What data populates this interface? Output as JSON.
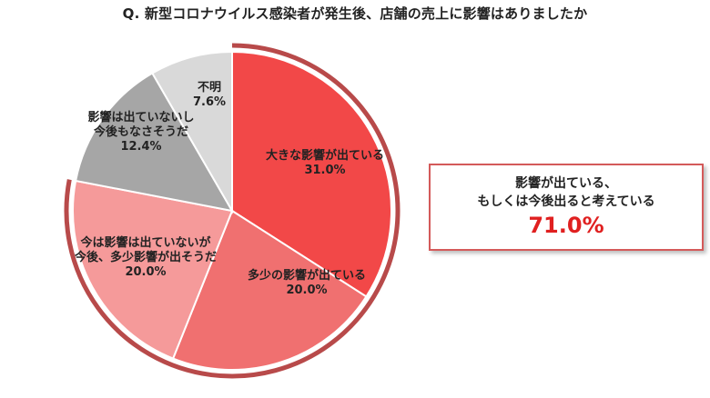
{
  "title": "Q.  新型コロナウイルス感染者が発生後、店舗の売上に影響はありましたか",
  "summary": {
    "line1": "影響が出ている、",
    "line2": "もしくは今後出ると考えている",
    "value": "71.0%"
  },
  "colors": {
    "slice1": "#f24848",
    "slice2": "#f07070",
    "slice3": "#f59a9a",
    "slice4": "#a6a6a6",
    "slice5": "#d9d9d9",
    "outer_arc": "#b84a4a",
    "summary_value": "#e02020",
    "summary_border": "#d45a5a"
  },
  "chart_data": {
    "type": "pie",
    "title": "Q.  新型コロナウイルス感染者が発生後、店舗の売上に影響はありましたか",
    "slices": [
      {
        "label_lines": [
          "大きな影響が出ている"
        ],
        "value": 31.0,
        "value_label": "31.0%"
      },
      {
        "label_lines": [
          "多少の影響が出ている"
        ],
        "value": 20.0,
        "value_label": "20.0%"
      },
      {
        "label_lines": [
          "今は影響は出ていないが",
          "今後、多少影響が出そうだ"
        ],
        "value": 20.0,
        "value_label": "20.0%"
      },
      {
        "label_lines": [
          "影響は出ていないし",
          "今後もなさそうだ"
        ],
        "value": 12.4,
        "value_label": "12.4%"
      },
      {
        "label_lines": [
          "不明"
        ],
        "value": 7.6,
        "value_label": "7.6%"
      }
    ],
    "highlight_total": 71.0
  }
}
